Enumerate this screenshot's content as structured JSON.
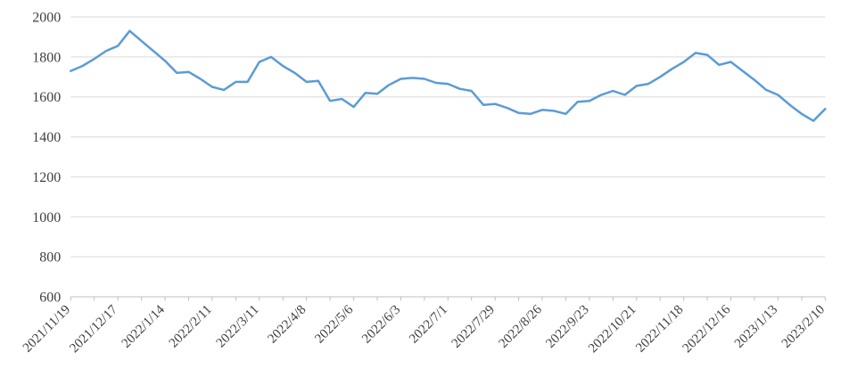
{
  "chart_data": {
    "type": "line",
    "title": "",
    "legend": "none",
    "grid": true,
    "ylim": [
      600,
      2000
    ],
    "yticks": [
      600,
      800,
      1000,
      1200,
      1400,
      1600,
      1800,
      2000
    ],
    "x_tick_interval": 2,
    "x_label_interval": 4,
    "x_tick_labels": [
      "2021/11/19",
      "2021/12/17",
      "2022/1/14",
      "2022/2/11",
      "2022/3/11",
      "2022/4/8",
      "2022/5/6",
      "2022/6/3",
      "2022/7/1",
      "2022/7/29",
      "2022/8/26",
      "2022/9/23",
      "2022/10/21",
      "2022/11/18",
      "2022/12/16",
      "2023/1/13",
      "2023/2/10"
    ],
    "x": [
      "2021/11/19",
      "2021/11/26",
      "2021/12/3",
      "2021/12/10",
      "2021/12/17",
      "2021/12/24",
      "2021/12/31",
      "2022/1/7",
      "2022/1/14",
      "2022/1/21",
      "2022/1/28",
      "2022/2/4",
      "2022/2/11",
      "2022/2/18",
      "2022/2/25",
      "2022/3/4",
      "2022/3/11",
      "2022/3/18",
      "2022/3/25",
      "2022/4/1",
      "2022/4/8",
      "2022/4/15",
      "2022/4/22",
      "2022/4/29",
      "2022/5/6",
      "2022/5/13",
      "2022/5/20",
      "2022/5/27",
      "2022/6/3",
      "2022/6/10",
      "2022/6/17",
      "2022/6/24",
      "2022/7/1",
      "2022/7/8",
      "2022/7/15",
      "2022/7/22",
      "2022/7/29",
      "2022/8/5",
      "2022/8/12",
      "2022/8/19",
      "2022/8/26",
      "2022/9/2",
      "2022/9/9",
      "2022/9/16",
      "2022/9/23",
      "2022/9/30",
      "2022/10/7",
      "2022/10/14",
      "2022/10/21",
      "2022/10/28",
      "2022/11/4",
      "2022/11/11",
      "2022/11/18",
      "2022/11/25",
      "2022/12/2",
      "2022/12/9",
      "2022/12/16",
      "2022/12/23",
      "2022/12/30",
      "2023/1/6",
      "2023/1/13",
      "2023/1/20",
      "2023/1/27",
      "2023/2/3",
      "2023/2/10"
    ],
    "series": [
      {
        "name": "",
        "values": [
          1730,
          1755,
          1790,
          1830,
          1855,
          1930,
          1880,
          1830,
          1780,
          1720,
          1725,
          1690,
          1650,
          1635,
          1675,
          1675,
          1775,
          1800,
          1755,
          1720,
          1675,
          1680,
          1580,
          1590,
          1550,
          1620,
          1615,
          1660,
          1690,
          1695,
          1690,
          1670,
          1665,
          1640,
          1630,
          1560,
          1565,
          1545,
          1520,
          1515,
          1535,
          1530,
          1515,
          1575,
          1580,
          1610,
          1630,
          1610,
          1655,
          1665,
          1700,
          1740,
          1775,
          1820,
          1810,
          1760,
          1775,
          1730,
          1685,
          1635,
          1610,
          1560,
          1515,
          1480,
          1540
        ]
      }
    ],
    "colors": {
      "line": "#5B9BD5",
      "gridline": "#D9D9D9",
      "axis": "#BFBFBF",
      "label": "#3F3F3F",
      "background": "#FFFFFF"
    }
  }
}
